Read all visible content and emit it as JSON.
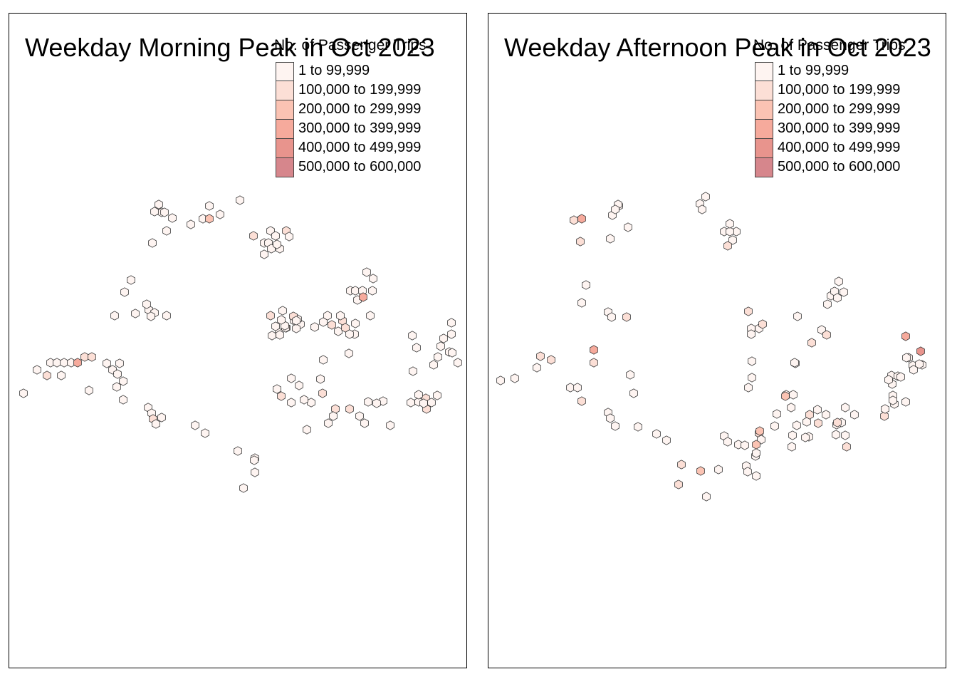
{
  "legend": {
    "title": "No. of Passenger Trips",
    "classes": [
      {
        "label": "1 to 99,999",
        "color": "#fef4f1"
      },
      {
        "label": "100,000 to 199,999",
        "color": "#fcdfd6"
      },
      {
        "label": "200,000 to 299,999",
        "color": "#fbc3b3"
      },
      {
        "label": "300,000 to 399,999",
        "color": "#f6aa9c"
      },
      {
        "label": "400,000 to 499,999",
        "color": "#e8948d"
      },
      {
        "label": "500,000 to 600,000",
        "color": "#d6868c"
      }
    ]
  },
  "maps": [
    {
      "title": "Weekday Morning Peak in Oct 2023",
      "hexagons": [
        {
          "c": 1
        },
        {
          "c": 1
        },
        {
          "c": 2
        },
        {
          "c": 1
        },
        {
          "c": 1
        },
        {
          "c": 1
        },
        {
          "c": 1
        },
        {
          "c": 4
        },
        {
          "c": 1
        },
        {
          "c": 2
        },
        {
          "c": 2
        },
        {
          "c": 1
        },
        {
          "c": 1
        },
        {
          "c": 1
        },
        {
          "c": 1
        },
        {
          "c": 1
        },
        {
          "c": 1
        },
        {
          "c": 1
        },
        {
          "c": 1
        },
        {
          "c": 1
        },
        {
          "c": 1
        },
        {
          "c": 1
        },
        {
          "c": 1
        },
        {
          "c": 1
        },
        {
          "c": 1
        },
        {
          "c": 1
        },
        {
          "c": 1
        },
        {
          "c": 1
        },
        {
          "c": 1
        },
        {
          "c": 1
        },
        {
          "c": 1
        },
        {
          "c": 1
        },
        {
          "c": 1
        },
        {
          "c": 1
        },
        {
          "c": 1
        },
        {
          "c": 1
        },
        {
          "c": 1
        },
        {
          "c": 1
        },
        {
          "c": 3
        },
        {
          "c": 1
        },
        {
          "c": 1
        },
        {
          "c": 2
        },
        {
          "c": 1
        },
        {
          "c": 1
        },
        {
          "c": 1
        },
        {
          "c": 1
        },
        {
          "c": 2
        },
        {
          "c": 1
        },
        {
          "c": 1
        },
        {
          "c": 1
        },
        {
          "c": 1
        },
        {
          "c": 1
        },
        {
          "c": 1
        },
        {
          "c": 1
        },
        {
          "c": 1
        },
        {
          "c": 1
        },
        {
          "c": 1
        },
        {
          "c": 1
        },
        {
          "c": 1
        },
        {
          "c": 4
        },
        {
          "c": 2
        },
        {
          "c": 1
        },
        {
          "c": 1
        },
        {
          "c": 1
        },
        {
          "c": 2
        },
        {
          "c": 1
        },
        {
          "c": 1
        },
        {
          "c": 1
        },
        {
          "c": 1
        },
        {
          "c": 2
        },
        {
          "c": 1
        },
        {
          "c": 2
        },
        {
          "c": 2
        },
        {
          "c": 1
        },
        {
          "c": 1
        },
        {
          "c": 1
        },
        {
          "c": 1
        },
        {
          "c": 1
        },
        {
          "c": 1
        },
        {
          "c": 1
        },
        {
          "c": 1
        },
        {
          "c": 1
        },
        {
          "c": 2
        },
        {
          "c": 1
        },
        {
          "c": 2
        },
        {
          "c": 1
        },
        {
          "c": 1
        },
        {
          "c": 2
        },
        {
          "c": 2
        },
        {
          "c": 1
        },
        {
          "c": 1
        },
        {
          "c": 1
        },
        {
          "c": 1
        },
        {
          "c": 1
        },
        {
          "c": 1
        },
        {
          "c": 1
        },
        {
          "c": 2
        },
        {
          "c": 1
        },
        {
          "c": 1
        },
        {
          "c": 2
        },
        {
          "c": 1
        },
        {
          "c": 1
        },
        {
          "c": 1
        },
        {
          "c": 1
        },
        {
          "c": 1
        },
        {
          "c": 1
        },
        {
          "c": 1
        },
        {
          "c": 1
        },
        {
          "c": 1
        },
        {
          "c": 1
        },
        {
          "c": 1
        },
        {
          "c": 1
        },
        {
          "c": 1
        },
        {
          "c": 2
        },
        {
          "c": 1
        },
        {
          "c": 1
        },
        {
          "c": 1
        },
        {
          "c": 1
        },
        {
          "c": 1
        },
        {
          "c": 1
        },
        {
          "c": 1
        },
        {
          "c": 1
        },
        {
          "c": 1
        },
        {
          "c": 1
        },
        {
          "c": 1
        },
        {
          "c": 1
        },
        {
          "c": 1
        },
        {
          "c": 1
        },
        {
          "c": 1
        },
        {
          "c": 1
        },
        {
          "c": 1
        },
        {
          "c": 1
        },
        {
          "c": 2
        },
        {
          "c": 1
        },
        {
          "c": 1
        },
        {
          "c": 1
        },
        {
          "c": 1
        },
        {
          "c": 1
        },
        {
          "c": 1
        },
        {
          "c": 1
        },
        {
          "c": 1
        },
        {
          "c": 1
        }
      ]
    },
    {
      "title": "Weekday Afternoon Peak in Oct 2023",
      "hexagons": [
        {
          "c": 1
        },
        {
          "c": 1
        },
        {
          "c": 2
        },
        {
          "c": 1
        },
        {
          "c": 2
        },
        {
          "c": 4
        },
        {
          "c": 2
        },
        {
          "c": 1
        },
        {
          "c": 1
        },
        {
          "c": 1
        },
        {
          "c": 1
        },
        {
          "c": 1
        },
        {
          "c": 1
        },
        {
          "c": 1
        },
        {
          "c": 1
        },
        {
          "c": 1
        },
        {
          "c": 1
        },
        {
          "c": 2
        },
        {
          "c": 1
        },
        {
          "c": 1
        },
        {
          "c": 1
        },
        {
          "c": 1
        },
        {
          "c": 2
        },
        {
          "c": 1
        },
        {
          "c": 1
        },
        {
          "c": 1
        },
        {
          "c": 1
        },
        {
          "c": 2
        },
        {
          "c": 2
        },
        {
          "c": 1
        },
        {
          "c": 1
        },
        {
          "c": 4
        },
        {
          "c": 2
        },
        {
          "c": 1
        },
        {
          "c": 1
        },
        {
          "c": 1
        },
        {
          "c": 1
        },
        {
          "c": 1
        },
        {
          "c": 1
        },
        {
          "c": 1
        },
        {
          "c": 1
        },
        {
          "c": 2
        },
        {
          "c": 2
        },
        {
          "c": 3
        },
        {
          "c": 1
        },
        {
          "c": 1
        },
        {
          "c": 1
        },
        {
          "c": 1
        },
        {
          "c": 1
        },
        {
          "c": 1
        },
        {
          "c": 2
        },
        {
          "c": 1
        },
        {
          "c": 3
        },
        {
          "c": 3
        },
        {
          "c": 1
        },
        {
          "c": 1
        },
        {
          "c": 1
        },
        {
          "c": 1
        },
        {
          "c": 1
        },
        {
          "c": 1
        },
        {
          "c": 1
        },
        {
          "c": 1
        },
        {
          "c": 1
        },
        {
          "c": 1
        },
        {
          "c": 1
        },
        {
          "c": 1
        },
        {
          "c": 1
        },
        {
          "c": 2
        },
        {
          "c": 1
        },
        {
          "c": 2
        },
        {
          "c": 1
        },
        {
          "c": 1
        },
        {
          "c": 1
        },
        {
          "c": 1
        },
        {
          "c": 2
        },
        {
          "c": 1
        },
        {
          "c": 1
        },
        {
          "c": 1
        },
        {
          "c": 2
        },
        {
          "c": 2
        },
        {
          "c": 1
        },
        {
          "c": 1
        },
        {
          "c": 1
        },
        {
          "c": 1
        },
        {
          "c": 1
        },
        {
          "c": 1
        },
        {
          "c": 2
        },
        {
          "c": 1
        },
        {
          "c": 1
        },
        {
          "c": 2
        },
        {
          "c": 1
        },
        {
          "c": 1
        },
        {
          "c": 1
        },
        {
          "c": 1
        },
        {
          "c": 1
        },
        {
          "c": 1
        },
        {
          "c": 1
        },
        {
          "c": 2
        },
        {
          "c": 1
        },
        {
          "c": 1
        },
        {
          "c": 1
        },
        {
          "c": 1
        },
        {
          "c": 3
        },
        {
          "c": 2
        },
        {
          "c": 1
        },
        {
          "c": 1
        },
        {
          "c": 1
        },
        {
          "c": 1
        },
        {
          "c": 1
        },
        {
          "c": 1
        },
        {
          "c": 1
        },
        {
          "c": 1
        },
        {
          "c": 4
        },
        {
          "c": 5
        },
        {
          "c": 1
        },
        {
          "c": 1
        },
        {
          "c": 1
        },
        {
          "c": 1
        },
        {
          "c": 1
        },
        {
          "c": 1
        },
        {
          "c": 1
        },
        {
          "c": 1
        },
        {
          "c": 1
        },
        {
          "c": 1
        }
      ]
    }
  ]
}
